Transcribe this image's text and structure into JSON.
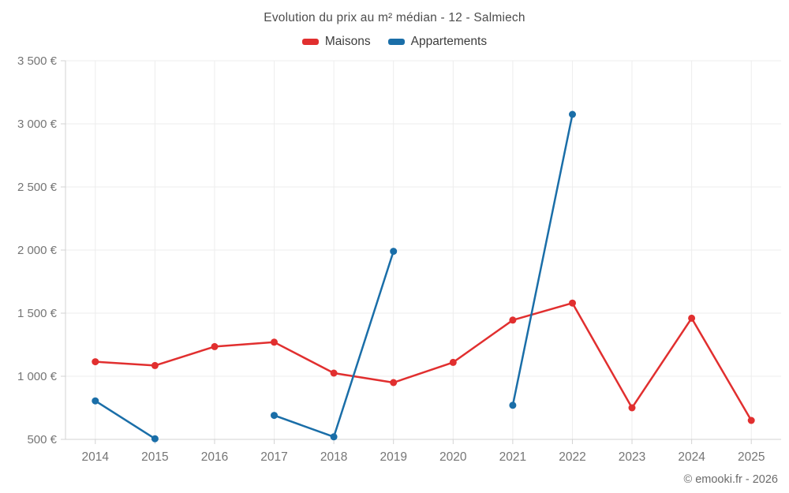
{
  "title": "Evolution du prix au m² médian - 12 - Salmiech",
  "footer": "© emooki.fr - 2026",
  "legend": {
    "items": [
      {
        "label": "Maisons",
        "color": "#e12f2f"
      },
      {
        "label": "Appartements",
        "color": "#1a6ea8"
      }
    ]
  },
  "colors": {
    "maisons": "#e12f2f",
    "appartements": "#1a6ea8",
    "gridline": "#ededed",
    "axis_line": "#d3d3d3",
    "tick_text": "#757575",
    "title_text": "#4d4d4d"
  },
  "chart_data": {
    "type": "line",
    "title": "Evolution du prix au m² médian - 12 - Salmiech",
    "categories": [
      "2014",
      "2015",
      "2016",
      "2017",
      "2018",
      "2019",
      "2020",
      "2021",
      "2022",
      "2023",
      "2024",
      "2025"
    ],
    "series": [
      {
        "name": "Maisons",
        "color": "#e12f2f",
        "values": [
          1115,
          1085,
          1235,
          1270,
          1025,
          950,
          1110,
          1445,
          1580,
          750,
          1460,
          650
        ]
      },
      {
        "name": "Appartements",
        "color": "#1a6ea8",
        "values": [
          805,
          505,
          null,
          690,
          520,
          1990,
          null,
          770,
          3075,
          null,
          null,
          null
        ]
      }
    ],
    "xlabel": "",
    "ylabel": "",
    "yticks": [
      500,
      1000,
      1500,
      2000,
      2500,
      3000,
      3500
    ],
    "ytick_suffix": " €",
    "ylim": [
      500,
      3500
    ],
    "grid": true,
    "legend_position": "top"
  }
}
